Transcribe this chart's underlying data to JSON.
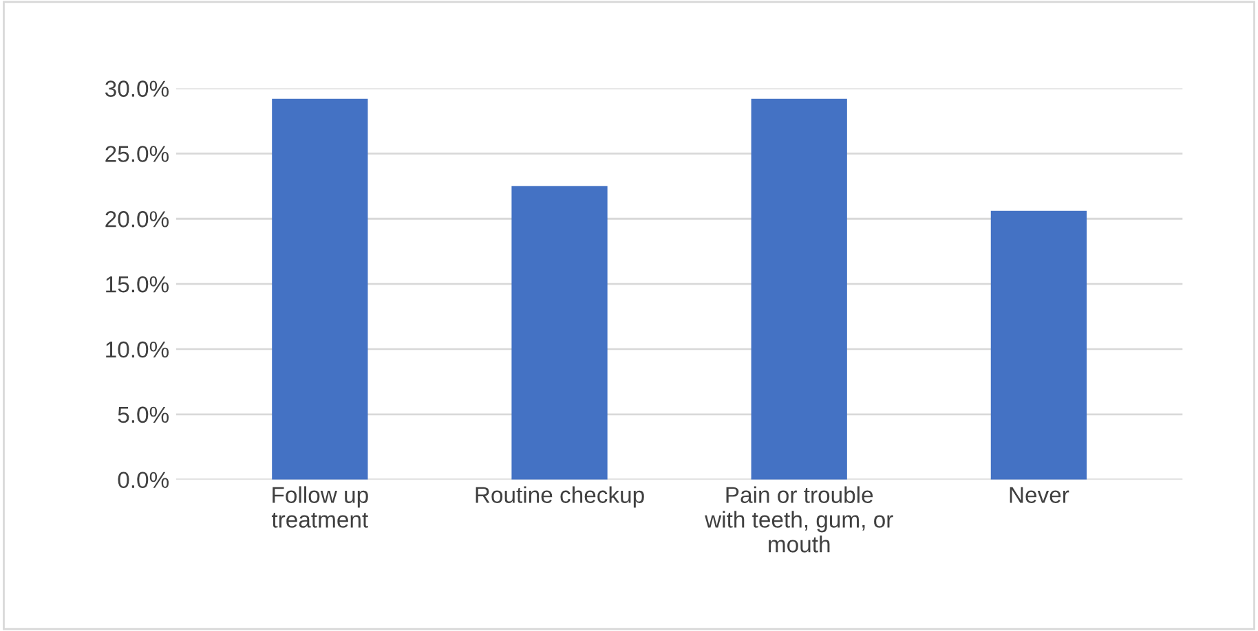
{
  "chart_data": {
    "type": "bar",
    "categories": [
      "Follow up\ntreatment",
      "Routine checkup",
      "Pain or trouble\nwith teeth, gum, or\nmouth",
      "Never"
    ],
    "values": [
      29.2,
      22.5,
      29.2,
      20.6
    ],
    "color": "#4472c4",
    "ylim": [
      0,
      30
    ],
    "yticks": [
      {
        "value": 0,
        "label": "0.0%"
      },
      {
        "value": 5,
        "label": "5.0%"
      },
      {
        "value": 10,
        "label": "10.0%"
      },
      {
        "value": 15,
        "label": "15.0%"
      },
      {
        "value": 20,
        "label": "20.0%"
      },
      {
        "value": 25,
        "label": "25.0%"
      },
      {
        "value": 30,
        "label": "30.0%"
      }
    ],
    "grid": "y"
  }
}
